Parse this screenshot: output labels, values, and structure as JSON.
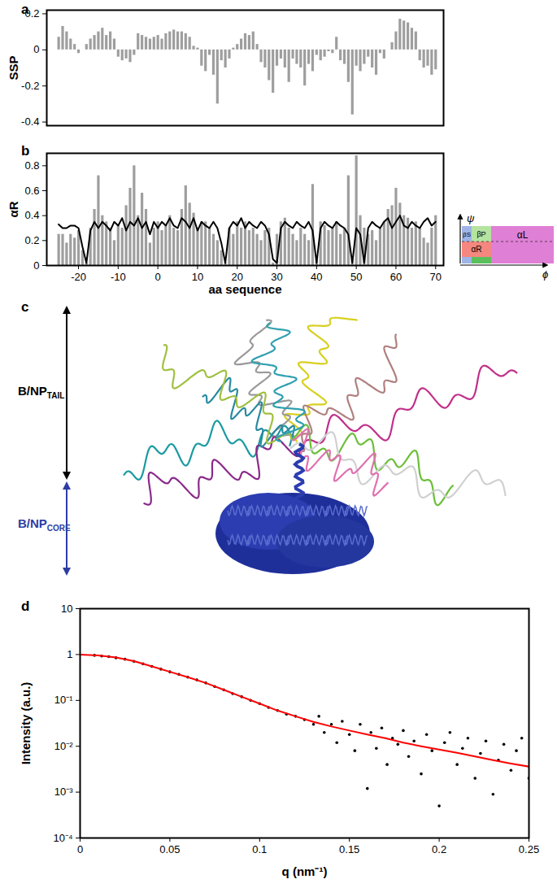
{
  "chart_data": [
    {
      "panel": "a",
      "type": "bar",
      "y_label": "SSP",
      "tick_labels": "y",
      "grid": false,
      "xlim": [
        -28,
        72
      ],
      "ylim": [
        -0.42,
        0.22
      ],
      "yticks": [
        -0.4,
        -0.2,
        0,
        0.2
      ],
      "x": [
        -25,
        -24,
        -23,
        -22,
        -21,
        -20,
        -19,
        -18,
        -17,
        -16,
        -15,
        -14,
        -13,
        -12,
        -11,
        -10,
        -9,
        -8,
        -7,
        -6,
        -5,
        -4,
        -3,
        -2,
        -1,
        0,
        1,
        2,
        3,
        4,
        5,
        6,
        7,
        8,
        9,
        10,
        11,
        12,
        13,
        14,
        15,
        16,
        17,
        18,
        19,
        20,
        21,
        22,
        23,
        24,
        25,
        26,
        27,
        28,
        29,
        30,
        31,
        32,
        33,
        34,
        35,
        36,
        37,
        38,
        39,
        40,
        41,
        42,
        43,
        44,
        45,
        46,
        47,
        48,
        49,
        50,
        51,
        52,
        53,
        54,
        55,
        56,
        57,
        58,
        59,
        60,
        61,
        62,
        63,
        64,
        65,
        66,
        67,
        68,
        69,
        70
      ],
      "color": "#9e9e9e",
      "values": [
        0.07,
        0.13,
        0.1,
        0.06,
        0.03,
        -0.02,
        0,
        0.03,
        0.06,
        0.08,
        0.1,
        0.12,
        0.08,
        0.1,
        0.06,
        -0.04,
        -0.06,
        -0.05,
        -0.07,
        -0.03,
        0.09,
        0.08,
        0.07,
        0.06,
        0.07,
        0.08,
        0.06,
        0.09,
        0.1,
        0.11,
        0.1,
        0.1,
        0.09,
        0.07,
        0.02,
        0.01,
        -0.09,
        -0.12,
        -0.03,
        -0.14,
        -0.3,
        -0.06,
        -0.1,
        -0.05,
        0.01,
        0.03,
        0.06,
        0.09,
        0.08,
        0.1,
        0.03,
        -0.07,
        -0.1,
        -0.17,
        -0.24,
        -0.09,
        -0.05,
        -0.1,
        -0.18,
        -0.05,
        -0.08,
        -0.1,
        -0.2,
        -0.08,
        -0.12,
        -0.03,
        -0.06,
        -0.04,
        -0.01,
        -0.02,
        0.07,
        -0.06,
        -0.08,
        -0.18,
        -0.36,
        -0.09,
        -0.12,
        -0.08,
        -0.04,
        -0.1,
        -0.14,
        -0.02,
        -0.05,
        0,
        0.04,
        0.1,
        0.17,
        0.16,
        0.15,
        0.12,
        0.1,
        -0.06,
        -0.1,
        -0.09,
        -0.14,
        -0.11
      ]
    },
    {
      "panel": "b",
      "type": "bar",
      "y_label": "αR",
      "x_label": "aa sequence",
      "grid": false,
      "xlim": [
        -28,
        72
      ],
      "ylim": [
        0,
        0.9
      ],
      "xticks": [
        -20,
        -10,
        0,
        10,
        20,
        30,
        40,
        50,
        60,
        70
      ],
      "yticks": [
        0,
        0.2,
        0.4,
        0.6,
        0.8
      ],
      "x": [
        -25,
        -24,
        -23,
        -22,
        -21,
        -20,
        -19,
        -18,
        -17,
        -16,
        -15,
        -14,
        -13,
        -12,
        -11,
        -10,
        -9,
        -8,
        -7,
        -6,
        -5,
        -4,
        -3,
        -2,
        -1,
        0,
        1,
        2,
        3,
        4,
        5,
        6,
        7,
        8,
        9,
        10,
        11,
        12,
        13,
        14,
        15,
        16,
        17,
        18,
        19,
        20,
        21,
        22,
        23,
        24,
        25,
        26,
        27,
        28,
        29,
        30,
        31,
        32,
        33,
        34,
        35,
        36,
        37,
        38,
        39,
        40,
        41,
        42,
        43,
        44,
        45,
        46,
        47,
        48,
        49,
        50,
        51,
        52,
        53,
        54,
        55,
        56,
        57,
        58,
        59,
        60,
        61,
        62,
        63,
        64,
        65,
        66,
        67,
        68,
        69,
        70
      ],
      "series": [
        {
          "type": "bar",
          "color": "#9e9e9e",
          "values": [
            0.25,
            0.25,
            0.18,
            0.25,
            0.22,
            0.28,
            0.12,
            0.02,
            0.3,
            0.45,
            0.72,
            0.4,
            0.35,
            0.3,
            0.2,
            0.32,
            0.3,
            0.48,
            0.62,
            0.8,
            0.4,
            0.58,
            0.45,
            0.18,
            0.3,
            0.35,
            0.28,
            0.32,
            0.4,
            0.3,
            0.28,
            0.45,
            0.64,
            0.5,
            0.42,
            0.3,
            0.35,
            0.35,
            0.3,
            0.25,
            0.2,
            0.12,
            0.02,
            0.3,
            0.25,
            0.35,
            0.3,
            0.35,
            0.28,
            0.3,
            0.25,
            0.2,
            0.28,
            0.3,
            0.02,
            0.25,
            0.35,
            0.38,
            0.3,
            0.25,
            0.2,
            0.3,
            0.25,
            0.2,
            0.65,
            0.05,
            0.35,
            0.32,
            0.28,
            0.3,
            0.35,
            0.25,
            0.3,
            0.72,
            0.05,
            0.88,
            0.4,
            0.3,
            0.25,
            0.28,
            0.2,
            0.3,
            0.35,
            0.45,
            0.48,
            0.62,
            0.5,
            0.4,
            0.38,
            0.3,
            0.35,
            0.3,
            0.22,
            0.18,
            0.3,
            0.4
          ]
        },
        {
          "type": "line",
          "color": "#000000",
          "line_style": "solid",
          "values": [
            0.33,
            0.3,
            0.3,
            0.32,
            0.32,
            0.3,
            0.15,
            0.02,
            0.28,
            0.35,
            0.3,
            0.35,
            0.32,
            0.28,
            0.35,
            0.32,
            0.38,
            0.28,
            0.35,
            0.32,
            0.38,
            0.3,
            0.35,
            0.25,
            0.35,
            0.3,
            0.35,
            0.32,
            0.38,
            0.32,
            0.3,
            0.38,
            0.35,
            0.3,
            0.38,
            0.28,
            0.35,
            0.32,
            0.3,
            0.35,
            0.3,
            0.18,
            0.02,
            0.3,
            0.35,
            0.32,
            0.38,
            0.3,
            0.35,
            0.32,
            0.3,
            0.35,
            0.32,
            0.25,
            0.05,
            0.02,
            0.3,
            0.35,
            0.32,
            0.3,
            0.35,
            0.32,
            0.3,
            0.35,
            0.28,
            0.02,
            0.3,
            0.35,
            0.32,
            0.3,
            0.35,
            0.32,
            0.3,
            0.25,
            0.02,
            0.3,
            0.25,
            0.02,
            0.3,
            0.35,
            0.32,
            0.3,
            0.35,
            0.38,
            0.3,
            0.35,
            0.4,
            0.32,
            0.3,
            0.35,
            0.32,
            0.3,
            0.35,
            0.38,
            0.32,
            0.35
          ]
        }
      ],
      "inset": {
        "x_label": "ϕ",
        "y_label": "ψ",
        "regions": [
          {
            "label": "βS",
            "color": "#9fb4e6"
          },
          {
            "label": "βP",
            "color": "#b5e3a1"
          },
          {
            "label": "αR",
            "color": "#f4877f"
          },
          {
            "label": "αL",
            "color": "#e07fd6"
          }
        ]
      }
    },
    {
      "panel": "d",
      "type": "scatter",
      "log": "y",
      "grid": false,
      "x_label": "q (nm⁻¹)",
      "y_label": "Intensity (a.u.)",
      "xlim": [
        0,
        0.25
      ],
      "ylim": [
        0.0001,
        10
      ],
      "xticks": [
        0,
        0.05,
        0.1,
        0.15,
        0.2,
        0.25
      ],
      "yticks": [
        {
          "value": 0.0001,
          "label": "10⁻⁴"
        },
        {
          "value": 0.001,
          "label": "10⁻³"
        },
        {
          "value": 0.01,
          "label": "10⁻²"
        },
        {
          "value": 0.1,
          "label": "10⁻¹"
        },
        1,
        10
      ],
      "series": [
        {
          "type": "scatter",
          "color": "#000000",
          "marker": "circle",
          "x": [
            0.008,
            0.012,
            0.016,
            0.02,
            0.025,
            0.03,
            0.035,
            0.04,
            0.045,
            0.05,
            0.055,
            0.06,
            0.065,
            0.07,
            0.075,
            0.08,
            0.085,
            0.09,
            0.095,
            0.1,
            0.105,
            0.11,
            0.115,
            0.12,
            0.125,
            0.13,
            0.133,
            0.136,
            0.14,
            0.143,
            0.146,
            0.15,
            0.153,
            0.156,
            0.16,
            0.162,
            0.165,
            0.168,
            0.171,
            0.174,
            0.177,
            0.18,
            0.183,
            0.186,
            0.19,
            0.193,
            0.196,
            0.2,
            0.203,
            0.206,
            0.21,
            0.213,
            0.216,
            0.22,
            0.223,
            0.226,
            0.23,
            0.233,
            0.236,
            0.24,
            0.243,
            0.246,
            0.25
          ],
          "values": [
            0.96,
            0.93,
            0.9,
            0.85,
            0.79,
            0.71,
            0.63,
            0.55,
            0.48,
            0.42,
            0.37,
            0.32,
            0.28,
            0.24,
            0.2,
            0.17,
            0.14,
            0.12,
            0.1,
            0.085,
            0.07,
            0.06,
            0.05,
            0.045,
            0.038,
            0.03,
            0.045,
            0.02,
            0.03,
            0.012,
            0.035,
            0.018,
            0.008,
            0.03,
            0.0012,
            0.02,
            0.009,
            0.025,
            0.004,
            0.015,
            0.011,
            0.022,
            0.006,
            0.013,
            0.0025,
            0.018,
            0.008,
            0.0005,
            0.012,
            0.02,
            0.004,
            0.009,
            0.015,
            0.002,
            0.007,
            0.013,
            0.0009,
            0.005,
            0.011,
            0.003,
            0.008,
            0.015,
            0.002
          ]
        },
        {
          "type": "line",
          "color": "#ff0000",
          "line_style": "solid",
          "x": [
            0,
            0.01,
            0.02,
            0.03,
            0.04,
            0.05,
            0.06,
            0.07,
            0.08,
            0.09,
            0.1,
            0.11,
            0.12,
            0.13,
            0.14,
            0.15,
            0.16,
            0.17,
            0.18,
            0.19,
            0.2,
            0.21,
            0.22,
            0.23,
            0.24,
            0.25
          ],
          "values": [
            1,
            0.96,
            0.86,
            0.72,
            0.55,
            0.42,
            0.32,
            0.24,
            0.17,
            0.12,
            0.085,
            0.06,
            0.045,
            0.034,
            0.027,
            0.022,
            0.018,
            0.015,
            0.012,
            0.01,
            0.0085,
            0.0072,
            0.006,
            0.005,
            0.0042,
            0.0036
          ]
        }
      ]
    }
  ],
  "diagram": {
    "panel": "c",
    "labels": [
      {
        "text": "B/NP",
        "subscript": "TAIL",
        "color": "#000000"
      },
      {
        "text": "B/NP",
        "subscript": "CORE",
        "color": "#2e3da3"
      }
    ]
  }
}
